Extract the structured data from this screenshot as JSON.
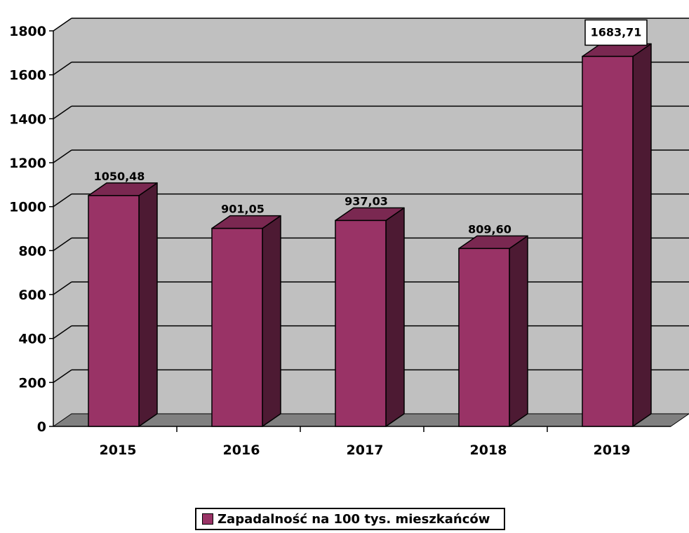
{
  "chart_data": {
    "type": "bar",
    "categories": [
      "2015",
      "2016",
      "2017",
      "2018",
      "2019"
    ],
    "series": [
      {
        "name": "Zapadalność na 100 tys. mieszkańców",
        "values": [
          1050.48,
          901.05,
          937.03,
          809.6,
          1683.71
        ],
        "labels": [
          "1050,48",
          "901,05",
          "937,03",
          "809,60",
          "1683,71"
        ]
      }
    ],
    "yticks": [
      "0",
      "200",
      "400",
      "600",
      "800",
      "1000",
      "1200",
      "1400",
      "1600",
      "1800"
    ],
    "ylim": [
      0,
      1800
    ],
    "grid": true,
    "legend": "bottom",
    "colors": {
      "bar_front": "#993366",
      "bar_top": "#7a2851",
      "bar_side": "#4d1a33",
      "wall": "#c0c0c0",
      "floor": "#808080"
    }
  },
  "legend": {
    "label": "Zapadalność na 100 tys. mieszkańców"
  }
}
